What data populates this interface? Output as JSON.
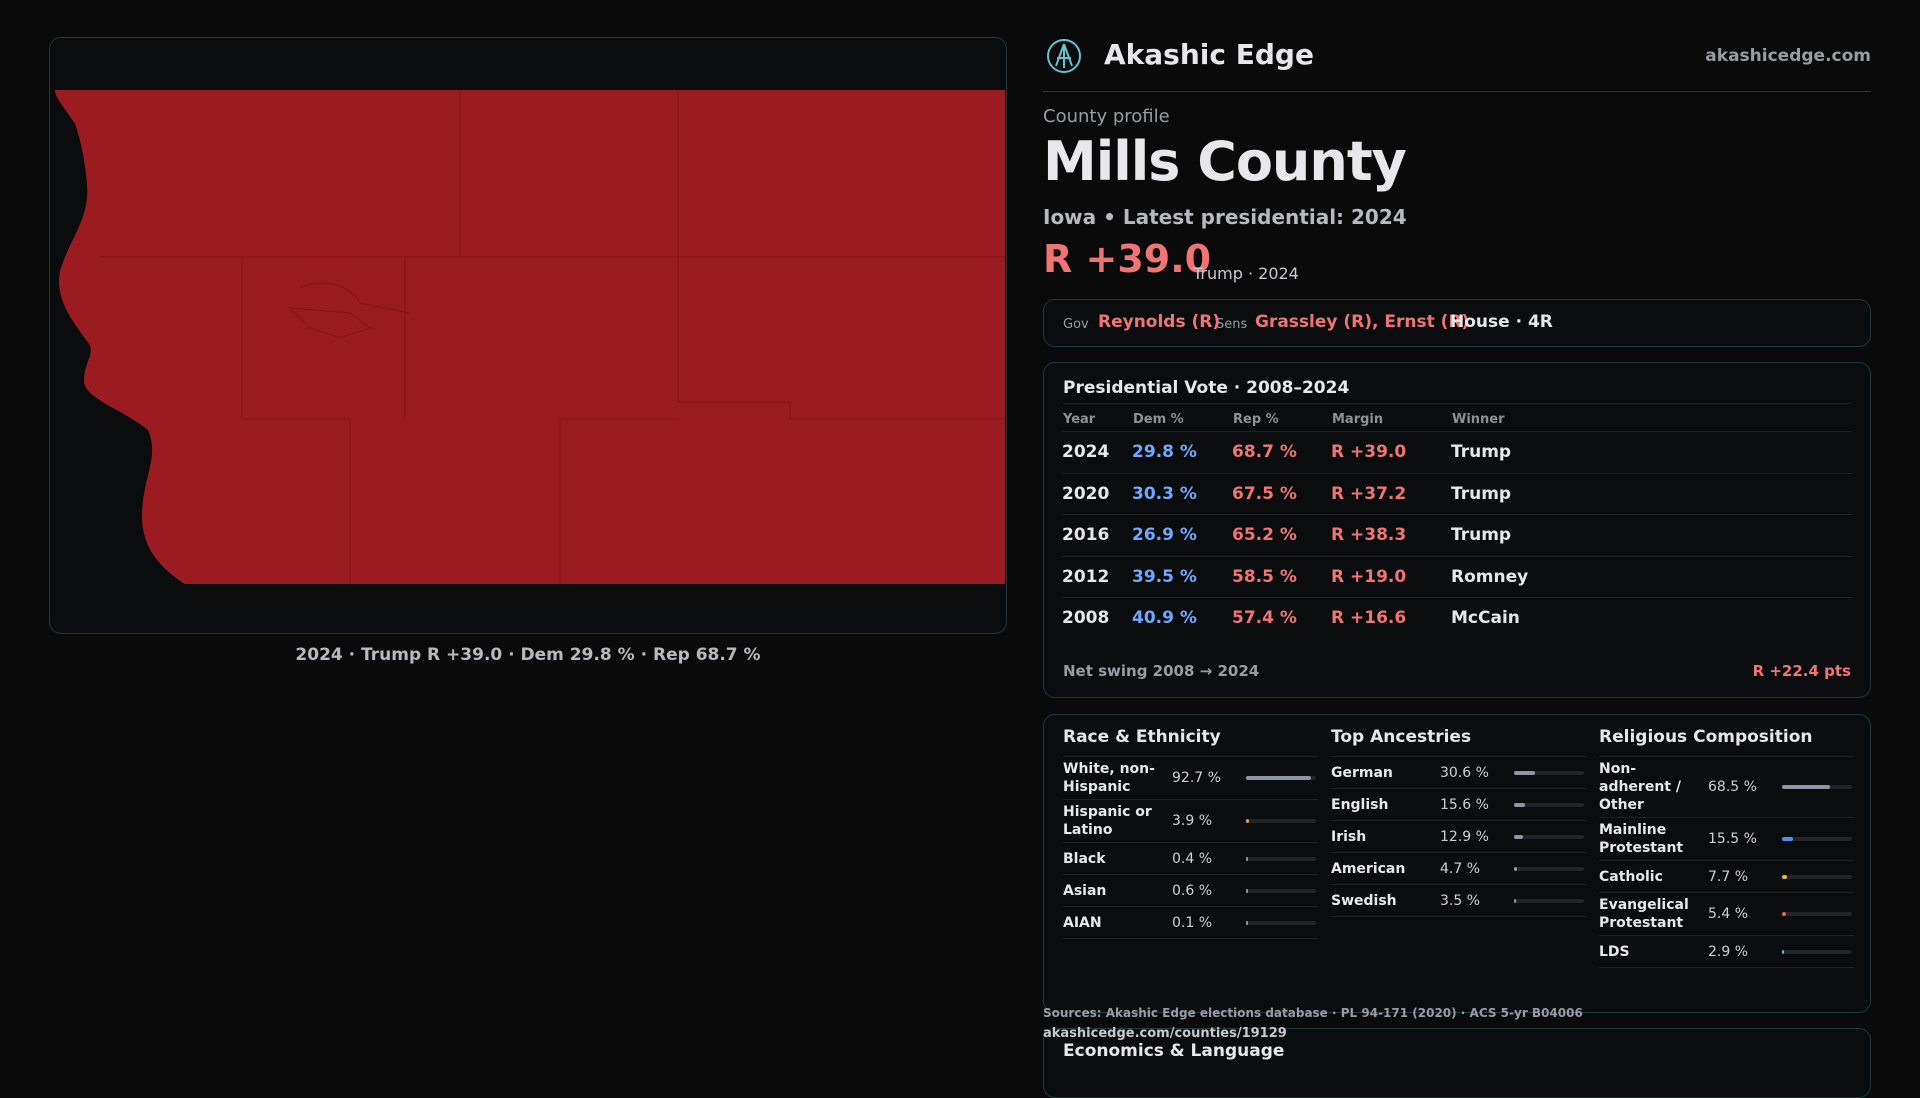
{
  "header": {
    "brand": "Akashic Edge",
    "site": "akashicedge.com"
  },
  "profile": {
    "label": "County profile",
    "name": "Mills County",
    "subtitle": "Iowa • Latest presidential: 2024",
    "margin": "R +39.0",
    "margin_note": "Trump · 2024"
  },
  "officials": {
    "gov_label": "Gov",
    "gov": "Reynolds (R)",
    "sens_label": "Sens",
    "sens": "Grassley (R), Ernst (R)",
    "house": "House · 4R"
  },
  "presidential": {
    "title": "Presidential Vote · 2008–2024",
    "columns": [
      "Year",
      "Dem %",
      "Rep %",
      "Margin",
      "Winner"
    ],
    "rows": [
      [
        "2024",
        "29.8 %",
        "68.7 %",
        "R +39.0",
        "Trump"
      ],
      [
        "2020",
        "30.3 %",
        "67.5 %",
        "R +37.2",
        "Trump"
      ],
      [
        "2016",
        "26.9 %",
        "65.2 %",
        "R +38.3",
        "Trump"
      ],
      [
        "2012",
        "39.5 %",
        "58.5 %",
        "R +19.0",
        "Romney"
      ],
      [
        "2008",
        "40.9 %",
        "57.4 %",
        "R +16.6",
        "McCain"
      ]
    ],
    "swing_label": "Net swing 2008 → 2024",
    "swing": "R +22.4 pts"
  },
  "demographics": [
    {
      "title": "Race & Ethnicity",
      "items": [
        {
          "name": "White, non-Hispanic",
          "value": 92.7,
          "value_label": "92.7 %",
          "color": "#8e96a8"
        },
        {
          "name": "Hispanic or Latino",
          "value": 3.9,
          "value_label": "3.9 %",
          "color": "#f0903c"
        },
        {
          "name": "Black",
          "value": 0.4,
          "value_label": "0.4 %",
          "color": "#8e96a8"
        },
        {
          "name": "Asian",
          "value": 0.6,
          "value_label": "0.6 %",
          "color": "#8e96a8"
        },
        {
          "name": "AIAN",
          "value": 0.1,
          "value_label": "0.1 %",
          "color": "#8e96a8"
        }
      ]
    },
    {
      "title": "Top Ancestries",
      "items": [
        {
          "name": "German",
          "value": 30.6,
          "value_label": "30.6 %",
          "color": "#8e96a8"
        },
        {
          "name": "English",
          "value": 15.6,
          "value_label": "15.6 %",
          "color": "#8e96a8"
        },
        {
          "name": "Irish",
          "value": 12.9,
          "value_label": "12.9 %",
          "color": "#8e96a8"
        },
        {
          "name": "American",
          "value": 4.7,
          "value_label": "4.7 %",
          "color": "#8e96a8"
        },
        {
          "name": "Swedish",
          "value": 3.5,
          "value_label": "3.5 %",
          "color": "#8e96a8"
        }
      ]
    },
    {
      "title": "Religious Composition",
      "items": [
        {
          "name": "Non-adherent / Other",
          "value": 68.5,
          "value_label": "68.5 %",
          "color": "#8e96a8"
        },
        {
          "name": "Mainline Protestant",
          "value": 15.5,
          "value_label": "15.5 %",
          "color": "#4f8ff0"
        },
        {
          "name": "Catholic",
          "value": 7.7,
          "value_label": "7.7 %",
          "color": "#f0b43c"
        },
        {
          "name": "Evangelical Protestant",
          "value": 5.4,
          "value_label": "5.4 %",
          "color": "#e86060"
        },
        {
          "name": "LDS",
          "value": 2.9,
          "value_label": "2.9 %",
          "color": "#3cc0d8"
        }
      ]
    }
  ],
  "sources": "Sources: Akashic Edge elections database · PL 94-171 (2020) · ACS 5-yr B04006",
  "url": "akashicedge.com/counties/19129",
  "economics_title": "Economics & Language",
  "map": {
    "caption": "2024 · Trump R +39.0 · Dem 29.8 % · Rep 68.7 %"
  }
}
